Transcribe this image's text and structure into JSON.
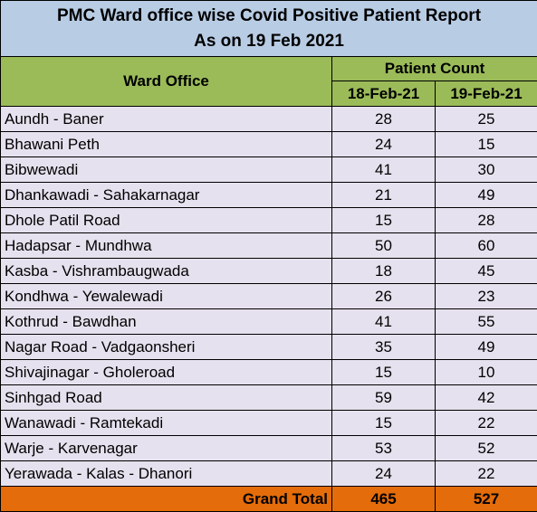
{
  "title": {
    "line1": "PMC Ward office wise Covid Positive Patient Report",
    "line2": "As on 19 Feb 2021"
  },
  "header": {
    "ward_office": "Ward Office",
    "patient_count": "Patient Count",
    "dates": [
      "18-Feb-21",
      "19-Feb-21"
    ]
  },
  "rows": [
    {
      "ward": "Aundh - Baner",
      "feb18": "28",
      "feb19": "25"
    },
    {
      "ward": "Bhawani Peth",
      "feb18": "24",
      "feb19": "15"
    },
    {
      "ward": "Bibwewadi",
      "feb18": "41",
      "feb19": "30"
    },
    {
      "ward": "Dhankawadi - Sahakarnagar",
      "feb18": "21",
      "feb19": "49"
    },
    {
      "ward": "Dhole Patil Road",
      "feb18": "15",
      "feb19": "28"
    },
    {
      "ward": "Hadapsar - Mundhwa",
      "feb18": "50",
      "feb19": "60"
    },
    {
      "ward": "Kasba - Vishrambaugwada",
      "feb18": "18",
      "feb19": "45"
    },
    {
      "ward": "Kondhwa - Yewalewadi",
      "feb18": "26",
      "feb19": "23"
    },
    {
      "ward": "Kothrud - Bawdhan",
      "feb18": "41",
      "feb19": "55"
    },
    {
      "ward": "Nagar Road - Vadgaonsheri",
      "feb18": "35",
      "feb19": "49"
    },
    {
      "ward": "Shivajinagar - Gholeroad",
      "feb18": "15",
      "feb19": "10"
    },
    {
      "ward": "Sinhgad Road",
      "feb18": "59",
      "feb19": "42"
    },
    {
      "ward": "Wanawadi - Ramtekadi",
      "feb18": "15",
      "feb19": "22"
    },
    {
      "ward": "Warje - Karvenagar",
      "feb18": "53",
      "feb19": "52"
    },
    {
      "ward": "Yerawada - Kalas - Dhanori",
      "feb18": "24",
      "feb19": "22"
    }
  ],
  "total": {
    "label": "Grand Total",
    "feb18": "465",
    "feb19": "527"
  },
  "colors": {
    "title_bg": "#b8cce4",
    "header_bg": "#9bbb59",
    "row_bg": "#e6e1ee",
    "total_bg": "#e46c0a"
  }
}
